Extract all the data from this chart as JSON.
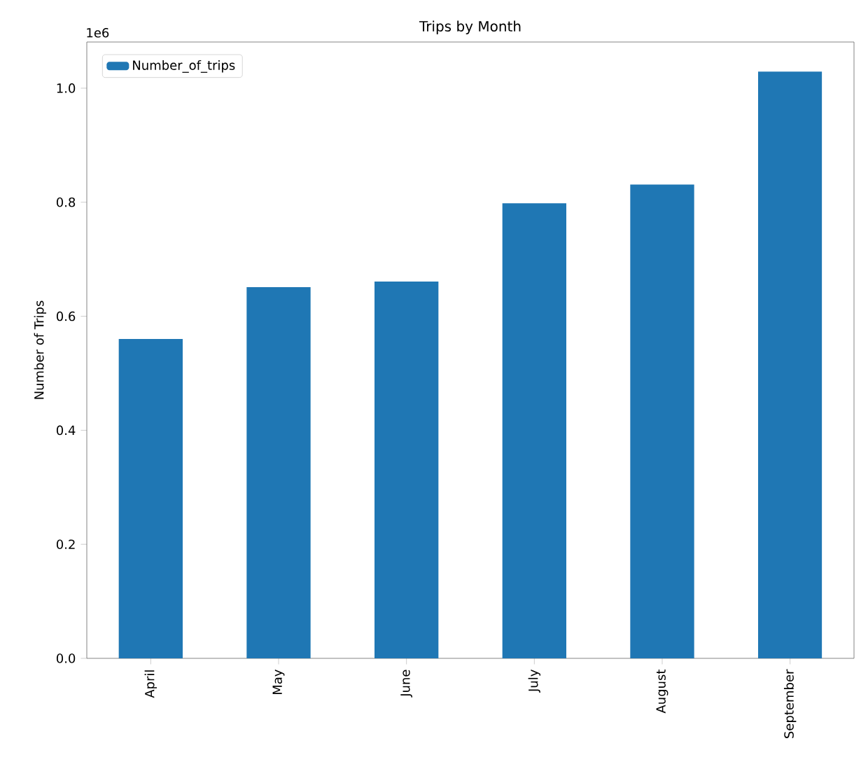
{
  "chart_data": {
    "type": "bar",
    "title": "Trips by Month",
    "ylabel": "Number of Trips",
    "categories": [
      "April",
      "May",
      "June",
      "July",
      "August",
      "September"
    ],
    "series": [
      {
        "name": "Number_of_trips",
        "color": "#1f77b4",
        "values": [
          0.56,
          0.651,
          0.661,
          0.798,
          0.831,
          1.029
        ]
      }
    ],
    "ylim": [
      0,
      1.081
    ],
    "yticks": [
      {
        "value": 0,
        "label": "0.0"
      },
      {
        "value": 0.2,
        "label": "0.2"
      },
      {
        "value": 0.4,
        "label": "0.4"
      },
      {
        "value": 0.6,
        "label": "0.6"
      },
      {
        "value": 0.8,
        "label": "0.8"
      },
      {
        "value": 1.0,
        "label": "1.0"
      }
    ],
    "annotations": [
      "1e6"
    ],
    "legend": "top left",
    "grid": false
  }
}
